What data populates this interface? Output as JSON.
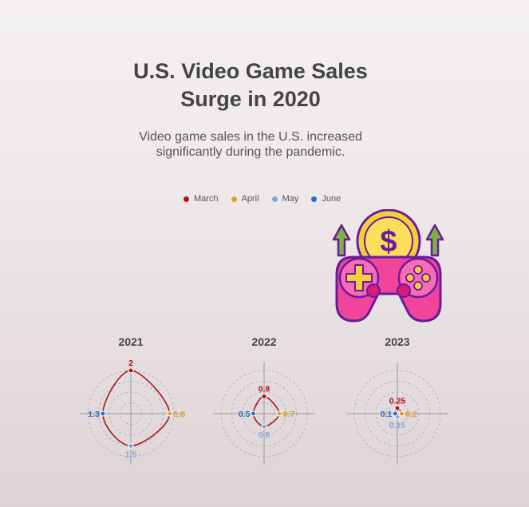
{
  "title_line1": "U.S. Video Game Sales",
  "title_line2": "Surge in 2020",
  "subtitle_line1": "Video game sales in the U.S. increased",
  "subtitle_line2": "significantly during the pandemic.",
  "colors": {
    "March": "#b01212",
    "April": "#e0a028",
    "May": "#7fa6dd",
    "June": "#2a6fcc",
    "line": "#a81818"
  },
  "legend": [
    "March",
    "April",
    "May",
    "June"
  ],
  "illustration_icon": "gamepad-dollar-icon",
  "chart_data": [
    {
      "type": "radar",
      "title": "2021",
      "axes": [
        "March",
        "April",
        "May",
        "June"
      ],
      "values": [
        2,
        1.8,
        1.5,
        1.3
      ],
      "labels": [
        "2",
        "1.8",
        "1.5",
        "1.3"
      ],
      "rmax": 2
    },
    {
      "type": "radar",
      "title": "2022",
      "axes": [
        "March",
        "April",
        "May",
        "June"
      ],
      "values": [
        0.8,
        0.7,
        0.6,
        0.5
      ],
      "labels": [
        "0.8",
        "0.7",
        "0.6",
        "0.5"
      ],
      "rmax": 2
    },
    {
      "type": "radar",
      "title": "2023",
      "axes": [
        "March",
        "April",
        "May",
        "June"
      ],
      "values": [
        0.25,
        0.2,
        0.15,
        0.1
      ],
      "labels": [
        "0.25",
        "0.2",
        "0.15",
        "0.1"
      ],
      "rmax": 2
    }
  ]
}
